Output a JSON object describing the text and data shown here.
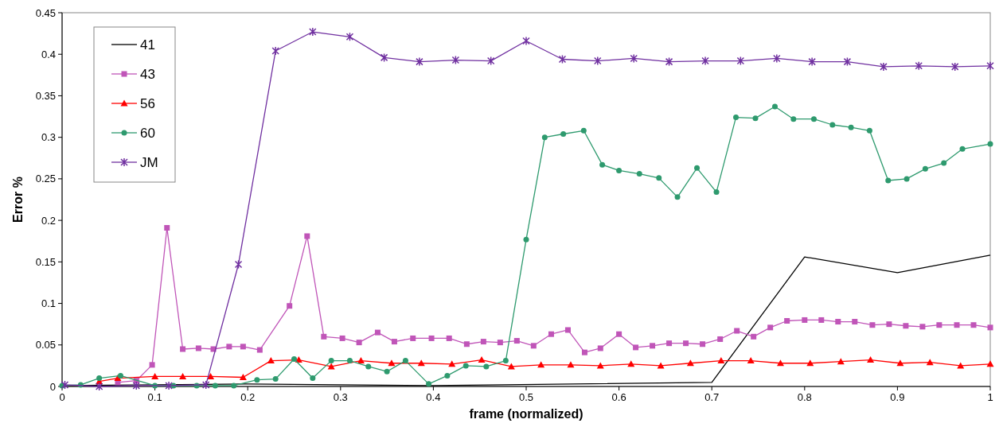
{
  "chart_data": {
    "type": "line",
    "xlabel": "frame (normalized)",
    "ylabel": "Error %",
    "xlim": [
      0,
      1
    ],
    "ylim": [
      0,
      0.45
    ],
    "xticks": [
      0,
      0.1,
      0.2,
      0.3,
      0.4,
      0.5,
      0.6,
      0.7,
      0.8,
      0.9,
      1
    ],
    "yticks": [
      0,
      0.05,
      0.1,
      0.15,
      0.2,
      0.25,
      0.3,
      0.35,
      0.4,
      0.45
    ],
    "grid": false,
    "legend": "top left",
    "series": [
      {
        "name": "41",
        "color": "#000000",
        "marker": "none",
        "x": [
          0,
          0.2,
          0.4,
          0.7,
          0.8,
          0.9,
          1
        ],
        "values": [
          0.001,
          0.003,
          0.001,
          0.005,
          0.156,
          0.137,
          0.158
        ]
      },
      {
        "name": "43",
        "color": "#c055b8",
        "marker": "square",
        "x": [
          0.06,
          0.08,
          0.097,
          0.113,
          0.13,
          0.147,
          0.163,
          0.18,
          0.195,
          0.213,
          0.245,
          0.264,
          0.282,
          0.302,
          0.32,
          0.34,
          0.358,
          0.378,
          0.398,
          0.417,
          0.436,
          0.454,
          0.472,
          0.49,
          0.508,
          0.527,
          0.545,
          0.563,
          0.58,
          0.6,
          0.618,
          0.636,
          0.654,
          0.672,
          0.69,
          0.709,
          0.727,
          0.745,
          0.763,
          0.781,
          0.8,
          0.818,
          0.836,
          0.854,
          0.873,
          0.891,
          0.909,
          0.927,
          0.945,
          0.964,
          0.982,
          1
        ],
        "values": [
          0.005,
          0.007,
          0.026,
          0.191,
          0.045,
          0.046,
          0.045,
          0.048,
          0.048,
          0.044,
          0.097,
          0.181,
          0.06,
          0.058,
          0.053,
          0.065,
          0.054,
          0.058,
          0.058,
          0.058,
          0.051,
          0.054,
          0.053,
          0.055,
          0.049,
          0.063,
          0.068,
          0.041,
          0.046,
          0.063,
          0.047,
          0.049,
          0.052,
          0.052,
          0.051,
          0.057,
          0.067,
          0.06,
          0.071,
          0.079,
          0.08,
          0.08,
          0.078,
          0.078,
          0.074,
          0.075,
          0.073,
          0.072,
          0.074,
          0.074,
          0.074,
          0.071
        ]
      },
      {
        "name": "56",
        "color": "#ff0000",
        "marker": "triangle",
        "x": [
          0.04,
          0.06,
          0.1,
          0.13,
          0.16,
          0.195,
          0.225,
          0.255,
          0.29,
          0.322,
          0.355,
          0.387,
          0.42,
          0.452,
          0.484,
          0.516,
          0.548,
          0.58,
          0.613,
          0.645,
          0.677,
          0.71,
          0.742,
          0.774,
          0.806,
          0.839,
          0.871,
          0.903,
          0.935,
          0.968,
          1
        ],
        "values": [
          0.006,
          0.01,
          0.012,
          0.012,
          0.012,
          0.011,
          0.031,
          0.032,
          0.024,
          0.031,
          0.028,
          0.028,
          0.027,
          0.032,
          0.024,
          0.026,
          0.026,
          0.025,
          0.027,
          0.025,
          0.028,
          0.031,
          0.031,
          0.028,
          0.028,
          0.03,
          0.032,
          0.028,
          0.029,
          0.025,
          0.027
        ]
      },
      {
        "name": "60",
        "color": "#2e9a6e",
        "marker": "circle",
        "x": [
          0,
          0.02,
          0.04,
          0.063,
          0.08,
          0.1,
          0.12,
          0.145,
          0.165,
          0.185,
          0.21,
          0.23,
          0.25,
          0.27,
          0.29,
          0.31,
          0.33,
          0.35,
          0.37,
          0.395,
          0.415,
          0.435,
          0.457,
          0.478,
          0.5,
          0.52,
          0.54,
          0.562,
          0.582,
          0.6,
          0.622,
          0.643,
          0.663,
          0.684,
          0.705,
          0.726,
          0.747,
          0.768,
          0.788,
          0.81,
          0.83,
          0.85,
          0.87,
          0.89,
          0.91,
          0.93,
          0.95,
          0.97,
          1
        ],
        "values": [
          0.001,
          0.002,
          0.01,
          0.013,
          null,
          0.001,
          0.001,
          0.001,
          0.001,
          0.001,
          0.008,
          0.009,
          0.033,
          0.01,
          0.031,
          0.031,
          0.024,
          0.018,
          0.031,
          0.003,
          0.013,
          0.025,
          0.024,
          0.031,
          0.177,
          0.3,
          0.304,
          0.308,
          0.267,
          0.26,
          0.256,
          0.251,
          0.228,
          0.263,
          0.234,
          0.324,
          0.323,
          0.337,
          0.322,
          0.322,
          0.315,
          0.312,
          0.308,
          0.248,
          0.25,
          0.262,
          0.269,
          0.286,
          0.292
        ]
      },
      {
        "name": "JM",
        "color": "#7030a0",
        "marker": "cross",
        "x": [
          0.003,
          0.04,
          0.08,
          0.115,
          0.155,
          0.19,
          0.23,
          0.27,
          0.31,
          0.347,
          0.385,
          0.424,
          0.462,
          0.5,
          0.539,
          0.577,
          0.616,
          0.654,
          0.693,
          0.731,
          0.77,
          0.808,
          0.846,
          0.885,
          0.923,
          0.962,
          1
        ],
        "values": [
          0.002,
          0,
          0.001,
          0.001,
          0.002,
          0.147,
          0.404,
          0.427,
          0.421,
          0.396,
          0.391,
          0.393,
          0.392,
          0.416,
          0.394,
          0.392,
          0.395,
          0.391,
          0.392,
          0.392,
          0.395,
          0.391,
          0.391,
          0.385,
          0.386,
          0.385,
          0.386
        ]
      }
    ]
  }
}
